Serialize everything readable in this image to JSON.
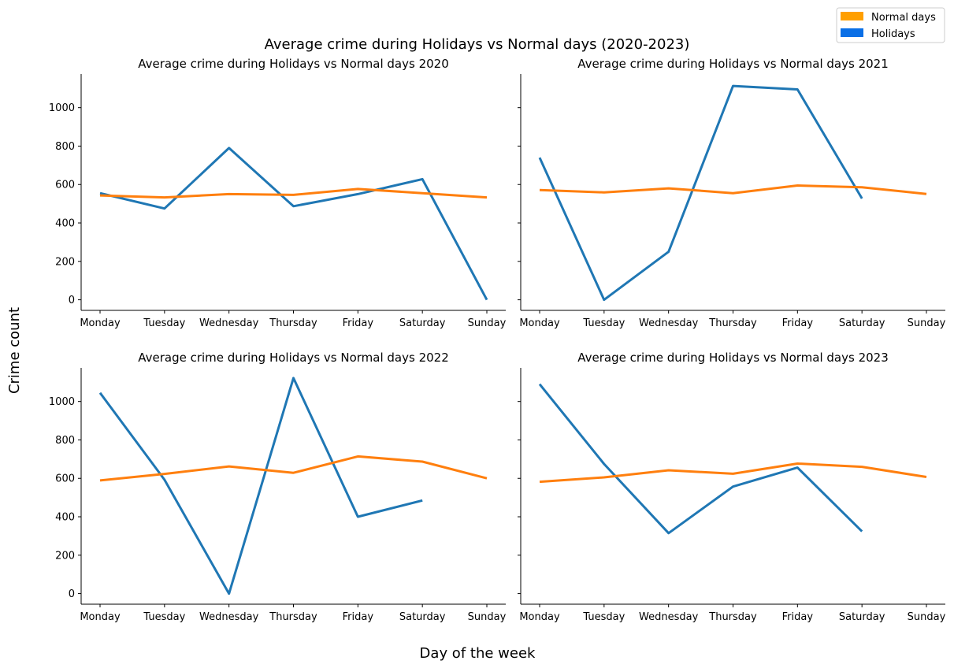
{
  "figure": {
    "suptitle": "Average crime during Holidays vs Normal days (2020-2023)",
    "xlabel": "Day of the week",
    "ylabel": "Crime count"
  },
  "legend": {
    "placement": "top-right",
    "items": [
      {
        "label": "Normal days",
        "color": "#ff9f00"
      },
      {
        "label": "Holidays",
        "color": "#0a6fe6"
      }
    ]
  },
  "chart_data": [
    {
      "type": "line",
      "title": "Average crime during Holidays vs Normal days 2020",
      "categories": [
        "Monday",
        "Tuesday",
        "Wednesday",
        "Thursday",
        "Friday",
        "Saturday",
        "Sunday"
      ],
      "ylim": [
        -55,
        1175
      ],
      "yticks": [
        0,
        200,
        400,
        600,
        800,
        1000
      ],
      "series": [
        {
          "name": "Holidays",
          "color": "#1f77b4",
          "values": [
            555,
            475,
            790,
            487,
            550,
            628,
            0
          ]
        },
        {
          "name": "Normal days",
          "color": "#ff7f0e",
          "values": [
            543,
            533,
            550,
            546,
            577,
            555,
            533
          ]
        }
      ]
    },
    {
      "type": "line",
      "title": "Average crime during Holidays vs Normal days 2021",
      "categories": [
        "Monday",
        "Tuesday",
        "Wednesday",
        "Thursday",
        "Friday",
        "Saturday",
        "Sunday"
      ],
      "ylim": [
        -55,
        1175
      ],
      "yticks": [
        0,
        200,
        400,
        600,
        800,
        1000
      ],
      "series": [
        {
          "name": "Holidays",
          "color": "#1f77b4",
          "values": [
            740,
            0,
            250,
            1113,
            1095,
            527,
            null
          ]
        },
        {
          "name": "Normal days",
          "color": "#ff7f0e",
          "values": [
            571,
            559,
            580,
            555,
            595,
            586,
            551
          ]
        }
      ]
    },
    {
      "type": "line",
      "title": "Average crime during Holidays vs Normal days 2022",
      "categories": [
        "Monday",
        "Tuesday",
        "Wednesday",
        "Thursday",
        "Friday",
        "Saturday",
        "Sunday"
      ],
      "ylim": [
        -55,
        1175
      ],
      "yticks": [
        0,
        200,
        400,
        600,
        800,
        1000
      ],
      "series": [
        {
          "name": "Holidays",
          "color": "#1f77b4",
          "values": [
            1045,
            593,
            0,
            1122,
            400,
            485,
            null
          ]
        },
        {
          "name": "Normal days",
          "color": "#ff7f0e",
          "values": [
            589,
            623,
            662,
            629,
            714,
            687,
            600
          ]
        }
      ]
    },
    {
      "type": "line",
      "title": "Average crime during Holidays vs Normal days 2023",
      "categories": [
        "Monday",
        "Tuesday",
        "Wednesday",
        "Thursday",
        "Friday",
        "Saturday",
        "Sunday"
      ],
      "ylim": [
        -55,
        1175
      ],
      "yticks": [
        0,
        200,
        400,
        600,
        800,
        1000
      ],
      "series": [
        {
          "name": "Holidays",
          "color": "#1f77b4",
          "values": [
            1090,
            675,
            315,
            557,
            656,
            324,
            null
          ]
        },
        {
          "name": "Normal days",
          "color": "#ff7f0e",
          "values": [
            582,
            605,
            642,
            624,
            677,
            660,
            607
          ]
        }
      ]
    }
  ]
}
